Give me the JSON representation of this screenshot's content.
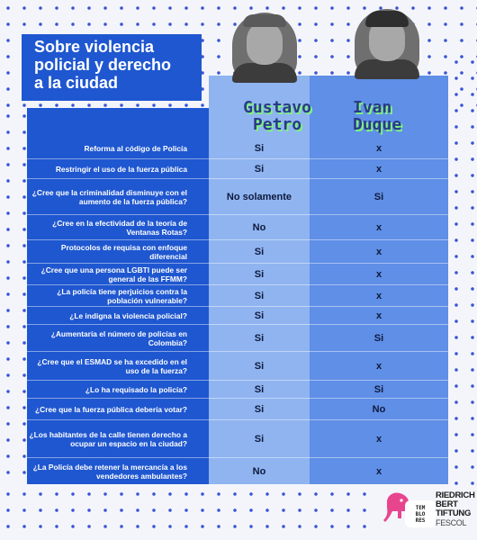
{
  "title_lines": [
    "Sobre violencia",
    "policial y derecho",
    "a la ciudad"
  ],
  "candidates": {
    "petro": {
      "line1": "Gustavo",
      "line2": "Petro"
    },
    "duque": {
      "line1": "Ivan",
      "line2": "Duque"
    }
  },
  "rows": [
    {
      "q": "Reforma al código de Policía",
      "petro": "Si",
      "duque": "x"
    },
    {
      "q": "Restringir el uso de la fuerza pública",
      "petro": "Si",
      "duque": "x"
    },
    {
      "q": "¿Cree que la criminalidad disminuye con el aumento de la fuerza pública?",
      "petro": "No solamente",
      "duque": "Si"
    },
    {
      "q": "¿Cree en la efectividad de la teoría de Ventanas Rotas?",
      "petro": "No",
      "duque": "x"
    },
    {
      "q": "Protocolos de requisa con enfoque diferencial",
      "petro": "Si",
      "duque": "x"
    },
    {
      "q": "¿Cree que una persona LGBTI puede ser general de las FFMM?",
      "petro": "Si",
      "duque": "x"
    },
    {
      "q": "¿La policía tiene perjuicios contra la población vulnerable?",
      "petro": "Si",
      "duque": "x"
    },
    {
      "q": "¿Le indigna la violencia policial?",
      "petro": "Si",
      "duque": "x"
    },
    {
      "q": "¿Aumentaría el número de policías en Colombia?",
      "petro": "Si",
      "duque": "Si"
    },
    {
      "q": "¿Cree que el ESMAD se ha excedido en el uso de la fuerza?",
      "petro": "Si",
      "duque": "x"
    },
    {
      "q": "¿Lo ha requisado la policía?",
      "petro": "Si",
      "duque": "Si"
    },
    {
      "q": "¿Cree que la fuerza pública debería votar?",
      "petro": "Si",
      "duque": "No"
    },
    {
      "q": "¿Los habitantes de la calle tienen derecho a ocupar un espacio en la ciudad?",
      "petro": "Si",
      "duque": "x"
    },
    {
      "q": "¿La Policía debe retener la mercancía a los vendedores ambulantes?",
      "petro": "No",
      "duque": "x"
    }
  ],
  "logos": {
    "tb_lines": [
      "TEM",
      "BLO",
      "RES"
    ],
    "fes_lines": [
      "RIEDRICH",
      "BERT",
      "TIFTUNG"
    ],
    "fes_sub": "FESCOL"
  },
  "colors": {
    "panel": "#1f57d0",
    "petro_column": "#8fb4f0",
    "duque_column": "#5f8fe6",
    "name_shadow": "#7ff080"
  }
}
